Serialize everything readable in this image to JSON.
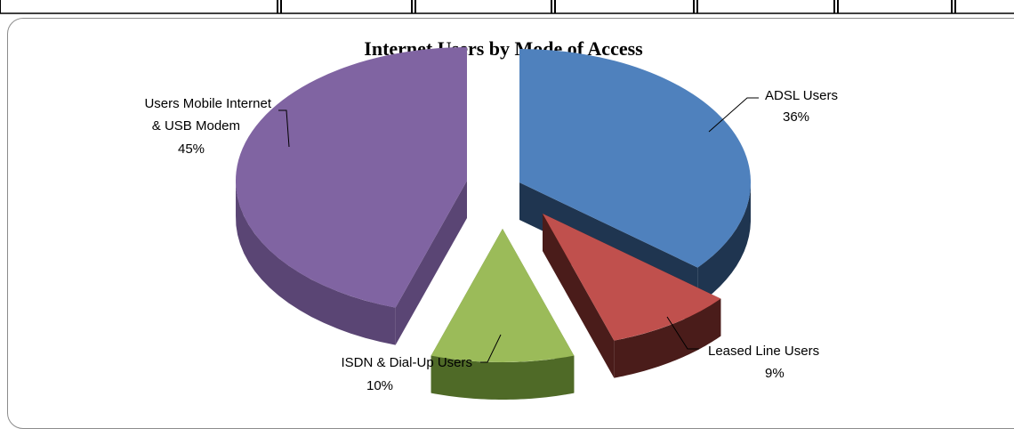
{
  "chart_data": {
    "type": "pie",
    "title": "Internet Users by Mode of Access",
    "slices": [
      {
        "label": "ADSL Users",
        "value": 36,
        "value_label": "36%",
        "color": "#4f81bd",
        "color_dark": "#1f3550"
      },
      {
        "label": "Leased Line Users",
        "value": 9,
        "value_label": "9%",
        "color": "#c0504d",
        "color_dark": "#4a1c1a"
      },
      {
        "label": "ISDN & Dial-Up Users",
        "value": 10,
        "value_label": "10%",
        "color": "#9bbb59",
        "color_dark": "#4f6a27"
      },
      {
        "label": "Users Mobile Internet & USB Modem",
        "value": 45,
        "value_label": "45%",
        "color": "#8064a2",
        "color_dark": "#5a4574"
      }
    ],
    "legend": "none",
    "style": "3d exploded pie"
  }
}
